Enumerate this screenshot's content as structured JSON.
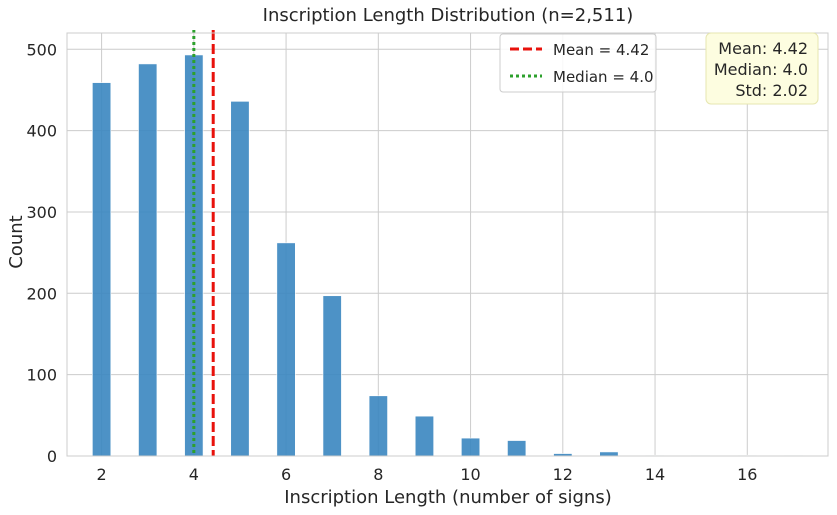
{
  "chart_data": {
    "type": "bar",
    "title": "Inscription Length Distribution (n=2,511)",
    "xlabel": "Inscription Length (number of signs)",
    "ylabel": "Count",
    "xlim": [
      1.25,
      17.75
    ],
    "ylim": [
      0,
      520
    ],
    "xticks": [
      2,
      4,
      6,
      8,
      10,
      12,
      14,
      16
    ],
    "yticks": [
      0,
      100,
      200,
      300,
      400,
      500
    ],
    "bar_width": 0.4,
    "bar_color": "#3a86c0",
    "grid": true,
    "bars": [
      {
        "x": 2,
        "value": 459
      },
      {
        "x": 3,
        "value": 482
      },
      {
        "x": 4,
        "value": 493
      },
      {
        "x": 5,
        "value": 436
      },
      {
        "x": 6,
        "value": 262
      },
      {
        "x": 7,
        "value": 197
      },
      {
        "x": 8,
        "value": 74
      },
      {
        "x": 9,
        "value": 49
      },
      {
        "x": 10,
        "value": 22
      },
      {
        "x": 11,
        "value": 19
      },
      {
        "x": 12,
        "value": 3
      },
      {
        "x": 13,
        "value": 5
      },
      {
        "x": 14,
        "value": 1
      },
      {
        "x": 15,
        "value": 1
      },
      {
        "x": 16,
        "value": 1
      },
      {
        "x": 17,
        "value": 1
      }
    ],
    "mean_line": {
      "x": 4.42,
      "label": "Mean = 4.42",
      "color": "#e8120c"
    },
    "median_line": {
      "x": 4.0,
      "label": "Median = 4.0",
      "color": "#2ca02c"
    },
    "legend_position": "top-center",
    "stats_box": {
      "lines": [
        "Mean: 4.42",
        "Median: 4.0",
        "Std: 2.02"
      ],
      "background": "#fdfde0",
      "position": "top-right"
    }
  }
}
